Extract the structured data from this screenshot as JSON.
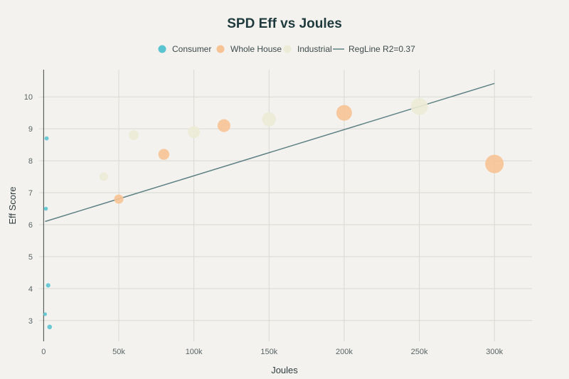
{
  "chart_data": {
    "type": "scatter",
    "title": "SPD Eff vs Joules",
    "xlabel": "Joules",
    "ylabel": "Eff Score",
    "xlim": [
      -3000,
      325000
    ],
    "ylim": [
      2.35,
      10.85
    ],
    "x_ticks": [
      0,
      50000,
      100000,
      150000,
      200000,
      250000,
      300000
    ],
    "x_tick_labels": [
      "0",
      "50k",
      "100k",
      "150k",
      "200k",
      "250k",
      "300k"
    ],
    "y_ticks": [
      3,
      4,
      5,
      6,
      7,
      8,
      9,
      10
    ],
    "y_tick_labels": [
      "3",
      "4",
      "5",
      "6",
      "7",
      "8",
      "9",
      "10"
    ],
    "grid": true,
    "legend_position": "top",
    "series": [
      {
        "name": "Consumer",
        "color": "#5bc4d1",
        "points": [
          {
            "x": 1000,
            "y": 3.2
          },
          {
            "x": 1500,
            "y": 6.5
          },
          {
            "x": 2000,
            "y": 8.7
          },
          {
            "x": 3000,
            "y": 4.1
          },
          {
            "x": 4000,
            "y": 2.8
          }
        ]
      },
      {
        "name": "Whole House",
        "color": "#f7c394",
        "points": [
          {
            "x": 50000,
            "y": 6.8
          },
          {
            "x": 80000,
            "y": 8.2
          },
          {
            "x": 120000,
            "y": 9.1
          },
          {
            "x": 200000,
            "y": 9.5
          },
          {
            "x": 300000,
            "y": 7.9
          }
        ]
      },
      {
        "name": "Industrial",
        "color": "#ebebd6",
        "points": [
          {
            "x": 40000,
            "y": 7.5
          },
          {
            "x": 60000,
            "y": 8.8
          },
          {
            "x": 100000,
            "y": 8.9
          },
          {
            "x": 150000,
            "y": 9.3
          },
          {
            "x": 250000,
            "y": 9.7
          }
        ]
      }
    ],
    "regression": {
      "name": "RegLine R2=0.37",
      "color": "#5e8284",
      "points": [
        {
          "x": 1000,
          "y": 6.1
        },
        {
          "x": 300000,
          "y": 10.42
        }
      ]
    }
  }
}
